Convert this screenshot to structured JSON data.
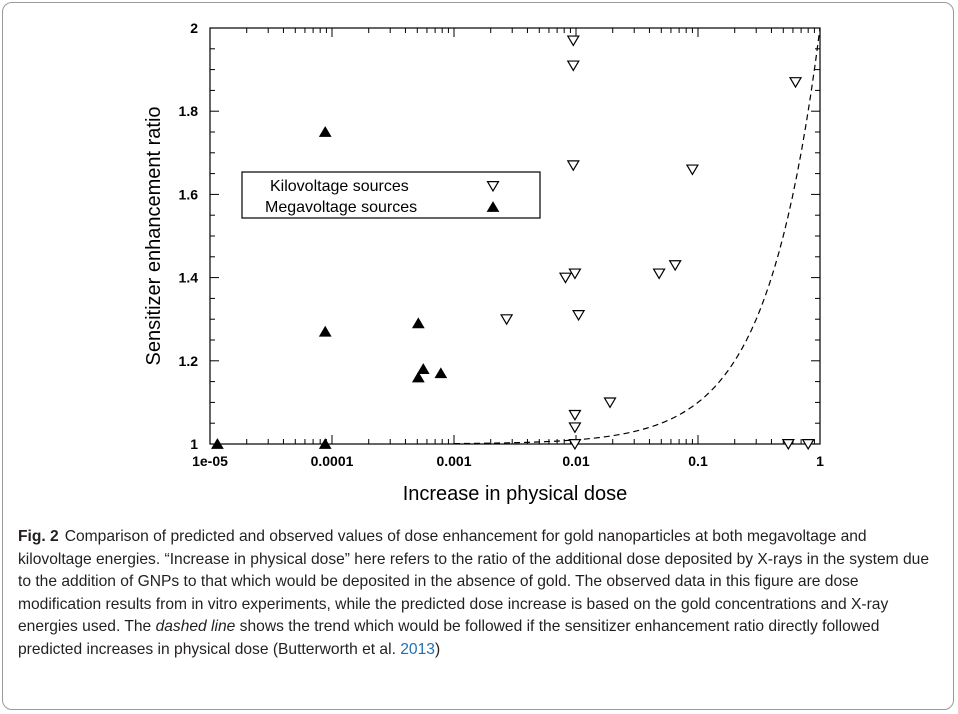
{
  "chart_data": {
    "type": "scatter",
    "xlabel": "Increase in physical dose",
    "ylabel": "Sensitizer enhancement ratio",
    "xscale": "log",
    "xlim": [
      1e-05,
      1
    ],
    "ylim": [
      1,
      2
    ],
    "x_ticks": [
      1e-05,
      0.0001,
      0.001,
      0.01,
      0.1,
      1
    ],
    "x_tick_labels": [
      "1e-05",
      "0.0001",
      "0.001",
      "0.01",
      "0.1",
      "1"
    ],
    "y_ticks": [
      1,
      1.2,
      1.4,
      1.6,
      1.8,
      2
    ],
    "y_tick_labels": [
      "1",
      "1.2",
      "1.4",
      "1.6",
      "1.8",
      "2"
    ],
    "legend_position": "center-left",
    "series": [
      {
        "name": "Kilovoltage sources",
        "marker": "open-down-triangle",
        "color": "#000000",
        "points": [
          {
            "x": 0.0095,
            "y": 1.97
          },
          {
            "x": 0.0095,
            "y": 1.91
          },
          {
            "x": 0.0095,
            "y": 1.67
          },
          {
            "x": 0.0082,
            "y": 1.4
          },
          {
            "x": 0.0098,
            "y": 1.41
          },
          {
            "x": 0.0105,
            "y": 1.31
          },
          {
            "x": 0.0027,
            "y": 1.3
          },
          {
            "x": 0.0098,
            "y": 1.07
          },
          {
            "x": 0.0098,
            "y": 1.04
          },
          {
            "x": 0.0098,
            "y": 1.0
          },
          {
            "x": 0.019,
            "y": 1.1
          },
          {
            "x": 0.048,
            "y": 1.41
          },
          {
            "x": 0.065,
            "y": 1.43
          },
          {
            "x": 0.09,
            "y": 1.66
          },
          {
            "x": 0.63,
            "y": 1.87
          },
          {
            "x": 0.55,
            "y": 1.0
          },
          {
            "x": 0.8,
            "y": 1.0
          }
        ]
      },
      {
        "name": "Megavoltage sources",
        "marker": "filled-up-triangle",
        "color": "#000000",
        "points": [
          {
            "x": 1.15e-05,
            "y": 1.0
          },
          {
            "x": 8.8e-05,
            "y": 1.75
          },
          {
            "x": 8.8e-05,
            "y": 1.27
          },
          {
            "x": 8.8e-05,
            "y": 1.0
          },
          {
            "x": 0.00051,
            "y": 1.29
          },
          {
            "x": 0.00051,
            "y": 1.16
          },
          {
            "x": 0.00056,
            "y": 1.18
          },
          {
            "x": 0.00078,
            "y": 1.17
          }
        ]
      }
    ],
    "trend_line": {
      "style": "dashed",
      "relation": "y = 1 + x",
      "x_start": 0.001,
      "x_end": 1
    }
  },
  "caption": {
    "label": "Fig. 2",
    "part1": "Comparison of predicted and observed values of dose enhancement for gold nanoparticles at both megavoltage and kilovoltage energies. “Increase in physical dose” here refers to the ratio of the additional dose deposited by X-rays in the system due to the addition of GNPs to that which would be deposited in the absence of gold. The observed data in this figure are dose modification results from in vitro experiments, while the predicted dose increase is based on the gold concentrations and X-ray energies used. The ",
    "italic": "dashed line",
    "part2": " shows the trend which would be followed if the sensitizer enhancement ratio directly followed predicted increases in physical dose (Butterworth et al. ",
    "cite_year": "2013",
    "part3": ")"
  }
}
